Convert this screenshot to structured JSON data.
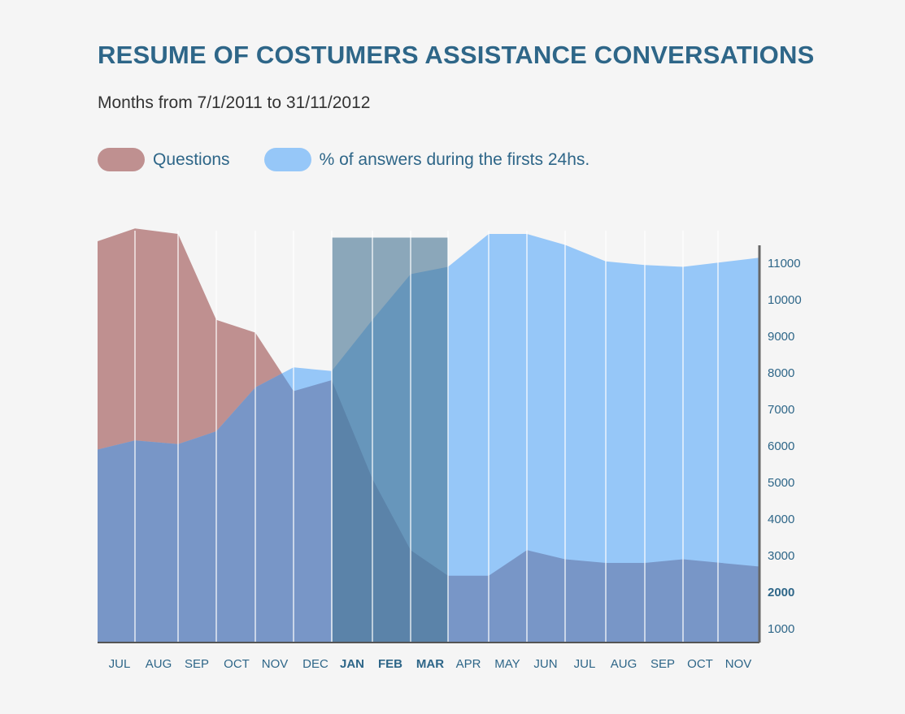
{
  "chart_data": {
    "type": "area",
    "title": "RESUME OF COSTUMERS ASSISTANCE CONVERSATIONS",
    "subtitle": "Months from  7/1/2011 to 31/11/2012",
    "categories": [
      "JUL",
      "AUG",
      "SEP",
      "OCT",
      "NOV",
      "DEC",
      "JAN",
      "FEB",
      "MAR",
      "APR",
      "MAY",
      "JUN",
      "JUL",
      "AUG",
      "SEP",
      "OCT",
      "NOV"
    ],
    "highlighted_categories": [
      "JAN",
      "FEB",
      "MAR"
    ],
    "y_ticks": [
      1000,
      2000,
      3000,
      4000,
      5000,
      6000,
      7000,
      8000,
      9000,
      10000,
      11000
    ],
    "ylim": [
      500,
      12000
    ],
    "y_axis_position": "right",
    "series": [
      {
        "name": "Questions",
        "color": "#bf9090",
        "x_positions": [
          0,
          1,
          2,
          3,
          4,
          5,
          6,
          7,
          8,
          9,
          10,
          11,
          12,
          13,
          14,
          15,
          16
        ],
        "values": [
          11600,
          11950,
          11800,
          9450,
          9100,
          7500,
          7800,
          5100,
          3150,
          2450,
          2450,
          3150,
          2900,
          2800,
          2800,
          2900,
          2700
        ]
      },
      {
        "name": "% of answers during the firsts 24hs.",
        "color": "#96c7f8",
        "values": [
          5900,
          6150,
          6050,
          6400,
          7600,
          8150,
          8050,
          9450,
          10700,
          10900,
          11800,
          11800,
          11500,
          11050,
          10950,
          10900,
          11150
        ]
      }
    ],
    "overlap_color": "#7896c7",
    "highlight_color": "#4a7896",
    "highlight_top_value": 11700
  }
}
